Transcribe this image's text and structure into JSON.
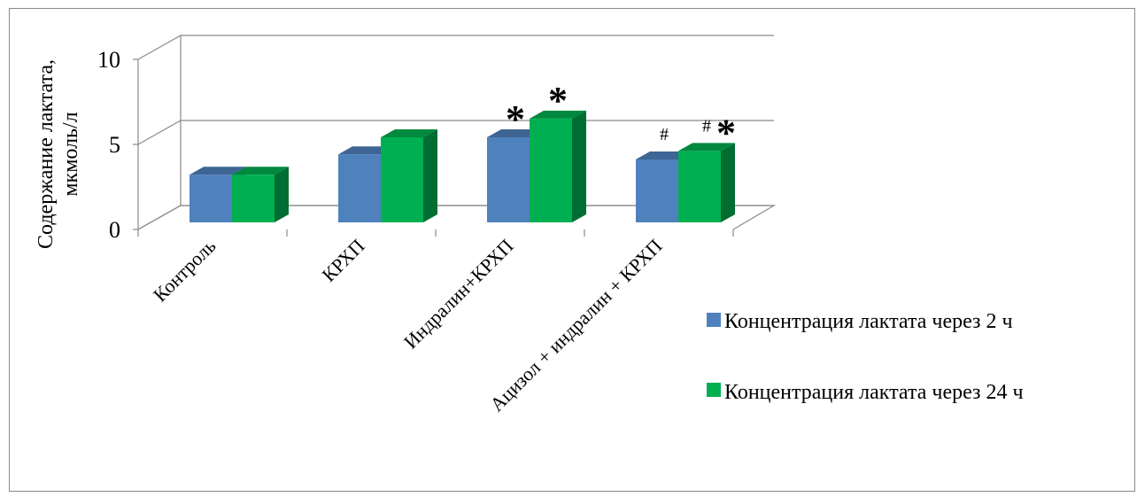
{
  "chart_data": {
    "type": "bar",
    "categories": [
      "Контроль",
      "КРХП",
      "Индралин+КРХП",
      "Ацизол + индралин + КРХП"
    ],
    "series": [
      {
        "name": "Концентрация лактата через 2 ч",
        "values": [
          2.8,
          4.0,
          5.0,
          3.7
        ],
        "color": "#4f81bd"
      },
      {
        "name": "Концентрация лактата через 24  ч",
        "values": [
          2.8,
          5.0,
          6.1,
          4.2
        ],
        "color": "#00b050"
      }
    ],
    "annotations": [
      {
        "category_index": 2,
        "series_index": 0,
        "text": "*"
      },
      {
        "category_index": 2,
        "series_index": 1,
        "text": "*"
      },
      {
        "category_index": 3,
        "series_index": 0,
        "text": "#"
      },
      {
        "category_index": 3,
        "series_index": 1,
        "text": "#"
      },
      {
        "category_index": 3,
        "series_index": 1,
        "text": "*"
      }
    ],
    "yticks": [
      "0",
      "5",
      "10"
    ],
    "ylim": [
      0,
      10
    ],
    "ylabel_line1": "Содержание лактата,",
    "ylabel_line2": "мкмоль/л",
    "grid": true,
    "legend_position": "right",
    "style": "3d-clustered-column"
  }
}
